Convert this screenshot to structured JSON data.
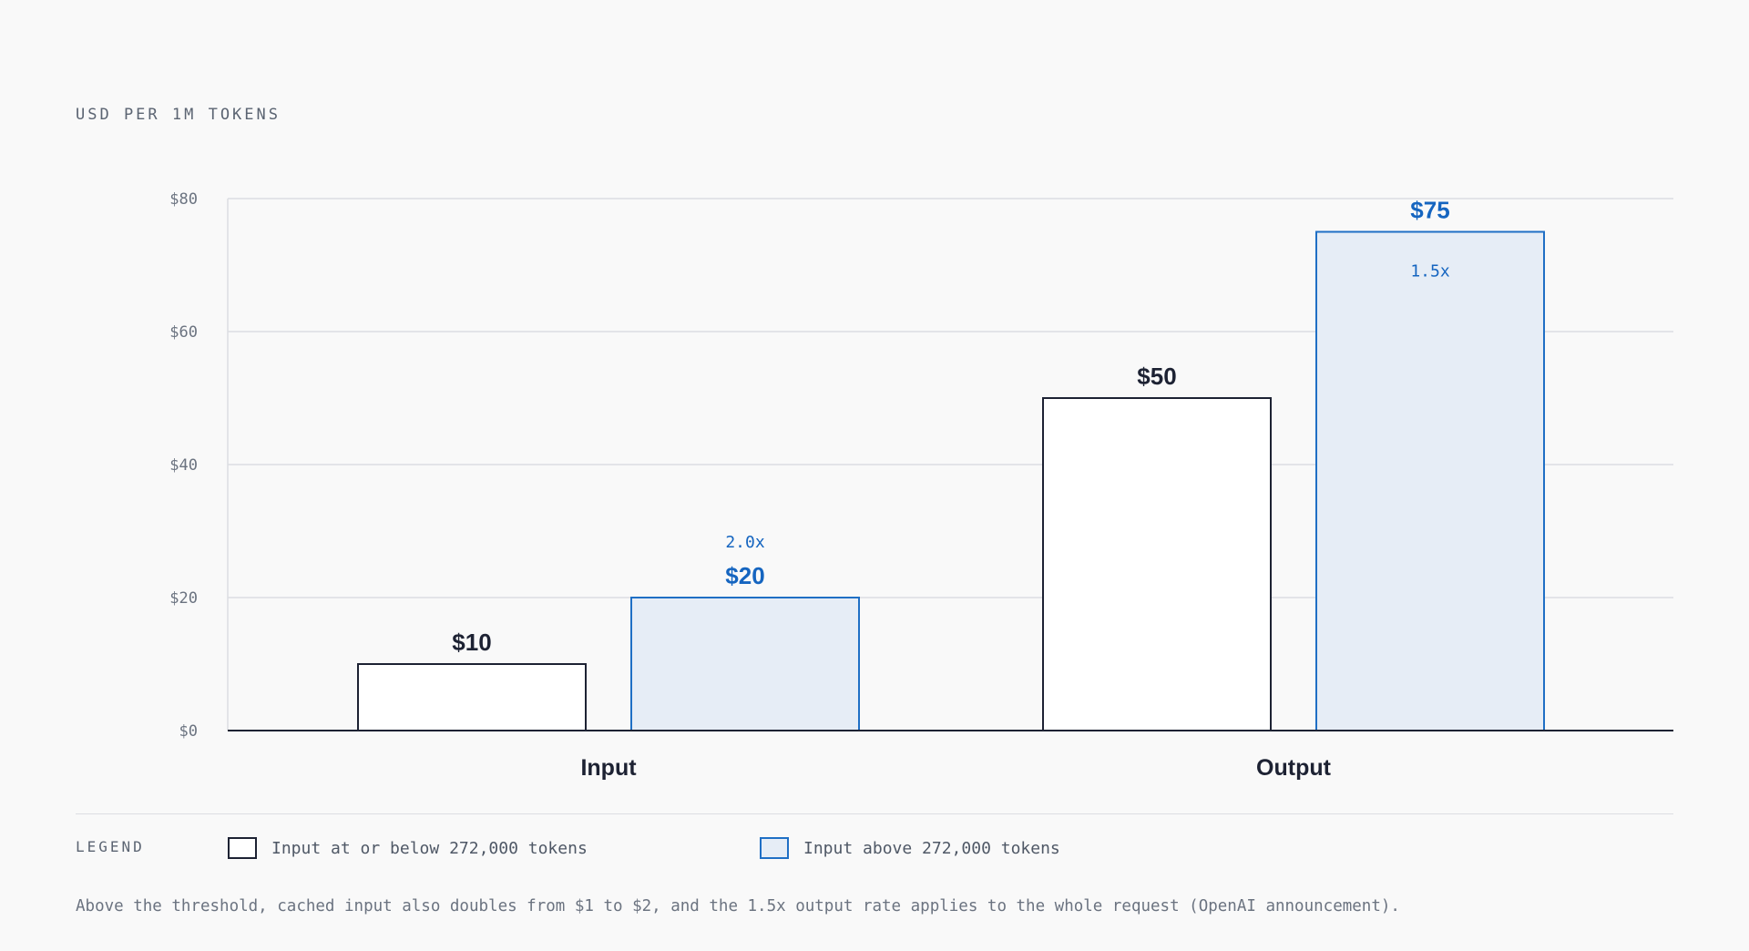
{
  "chart_data": {
    "type": "bar",
    "ylabel": "USD PER 1M TOKENS",
    "categories": [
      "Input",
      "Output"
    ],
    "series": [
      {
        "name": "Input at or below 272,000 tokens",
        "values": [
          10,
          50
        ],
        "data_labels": [
          "$10",
          "$50"
        ],
        "multipliers": [
          "",
          ""
        ]
      },
      {
        "name": "Input above 272,000 tokens",
        "values": [
          20,
          75
        ],
        "data_labels": [
          "$20",
          "$75"
        ],
        "multipliers": [
          "2.0x",
          "1.5x"
        ]
      }
    ],
    "ylim": [
      0,
      80
    ],
    "yticks": [
      0,
      20,
      40,
      60,
      80
    ],
    "ytick_labels": [
      "$0",
      "$20",
      "$40",
      "$60",
      "$80"
    ],
    "grid": true,
    "legend_position": "bottom"
  },
  "legend": {
    "heading": "LEGEND",
    "items": [
      {
        "label": "Input at or below 272,000 tokens"
      },
      {
        "label": "Input above 272,000 tokens"
      }
    ]
  },
  "footnote": "Above the threshold, cached input also doubles from $1 to $2, and the 1.5x output rate applies to the whole request (OpenAI announcement).",
  "colors": {
    "base_stroke": "#1d2233",
    "base_fill": "#ffffff",
    "above_stroke": "#1f6fc5",
    "above_fill": "#e6edf6",
    "above_text": "#1565c0",
    "grid": "#dcdee2",
    "axis": "#1d2233",
    "tick_text": "#6b7380"
  }
}
